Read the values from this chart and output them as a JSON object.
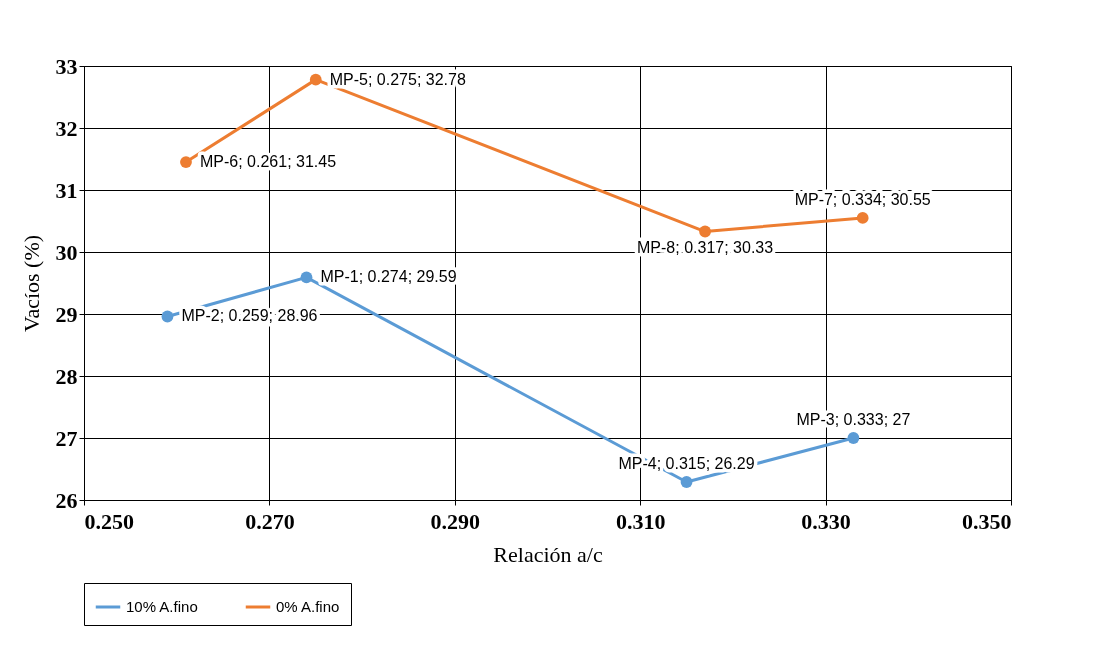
{
  "chart_data": {
    "type": "line",
    "xlabel": "Relación a/c",
    "ylabel": "Vacíos (%)",
    "xlim": [
      0.25,
      0.35
    ],
    "xticks": [
      {
        "value": 0.25,
        "label": "0.250"
      },
      {
        "value": 0.27,
        "label": "0.270"
      },
      {
        "value": 0.29,
        "label": "0.290"
      },
      {
        "value": 0.31,
        "label": "0.310"
      },
      {
        "value": 0.33,
        "label": "0.330"
      },
      {
        "value": 0.35,
        "label": "0.350"
      }
    ],
    "ylim": [
      26,
      33
    ],
    "yticks": [
      26,
      27,
      28,
      29,
      30,
      31,
      32,
      33
    ],
    "grid": true,
    "legend": "bottom",
    "marker": "circle",
    "line_style": "solid",
    "series": [
      {
        "name": "10% A.fino",
        "color": "#5b9bd5",
        "x": [
          0.259,
          0.274,
          0.315,
          0.333
        ],
        "values": [
          28.96,
          29.59,
          26.29,
          27
        ],
        "value_labels": [
          "MP-2; 0.259; 28.96",
          "MP-1; 0.274; 29.59",
          "MP-4; 0.315; 26.29",
          "MP-3; 0.333; 27"
        ]
      },
      {
        "name": "0% A.fino",
        "color": "#ed7d31",
        "x": [
          0.261,
          0.275,
          0.317,
          0.334
        ],
        "values": [
          31.45,
          32.78,
          30.33,
          30.55
        ],
        "value_labels": [
          "MP-6; 0.261; 31.45",
          "MP-5; 0.275; 32.78",
          "MP-8; 0.317; 30.33",
          "MP-7; 0.334; 30.55"
        ]
      }
    ]
  }
}
